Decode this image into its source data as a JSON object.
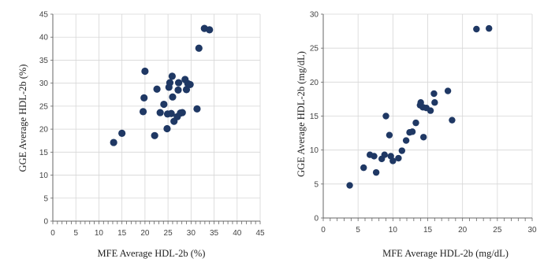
{
  "chart_data": [
    {
      "type": "scatter",
      "xlabel": "MFE Average HDL-2b (%)",
      "ylabel": "GGE Average HDL-2b (%)",
      "xlim": [
        0,
        45
      ],
      "ylim": [
        0,
        45
      ],
      "xticks": [
        0,
        5,
        10,
        15,
        20,
        25,
        30,
        35,
        40,
        45
      ],
      "yticks": [
        0,
        5,
        10,
        15,
        20,
        25,
        30,
        35,
        40,
        45
      ],
      "grid": true,
      "marker_color": "#1f3864",
      "points": [
        {
          "x": 13.2,
          "y": 17.1
        },
        {
          "x": 15.0,
          "y": 19.1
        },
        {
          "x": 19.6,
          "y": 23.8
        },
        {
          "x": 19.8,
          "y": 26.8
        },
        {
          "x": 20.0,
          "y": 32.6
        },
        {
          "x": 22.1,
          "y": 18.6
        },
        {
          "x": 22.6,
          "y": 28.7
        },
        {
          "x": 23.3,
          "y": 23.6
        },
        {
          "x": 24.1,
          "y": 25.4
        },
        {
          "x": 24.8,
          "y": 20.1
        },
        {
          "x": 24.9,
          "y": 23.3
        },
        {
          "x": 25.2,
          "y": 29.1
        },
        {
          "x": 25.4,
          "y": 30.1
        },
        {
          "x": 25.7,
          "y": 23.4
        },
        {
          "x": 25.9,
          "y": 31.5
        },
        {
          "x": 26.0,
          "y": 27.0
        },
        {
          "x": 26.3,
          "y": 21.7
        },
        {
          "x": 27.0,
          "y": 22.7
        },
        {
          "x": 27.2,
          "y": 28.5
        },
        {
          "x": 27.3,
          "y": 30.1
        },
        {
          "x": 27.7,
          "y": 23.5
        },
        {
          "x": 28.1,
          "y": 23.6
        },
        {
          "x": 28.7,
          "y": 30.8
        },
        {
          "x": 29.0,
          "y": 28.6
        },
        {
          "x": 29.3,
          "y": 29.9
        },
        {
          "x": 29.8,
          "y": 29.7
        },
        {
          "x": 31.3,
          "y": 24.4
        },
        {
          "x": 31.7,
          "y": 37.6
        },
        {
          "x": 32.9,
          "y": 41.9
        },
        {
          "x": 34.0,
          "y": 41.6
        }
      ]
    },
    {
      "type": "scatter",
      "xlabel": "MFE Average HDL-2b (mg/dL)",
      "ylabel": "GGE Average HDL-2b (mg/dL)",
      "xlim": [
        0,
        30
      ],
      "ylim": [
        0,
        30
      ],
      "xticks": [
        0,
        5,
        10,
        15,
        20,
        25,
        30
      ],
      "yticks": [
        0,
        5,
        10,
        15,
        20,
        25,
        30
      ],
      "grid": true,
      "marker_color": "#1f3864",
      "points": [
        {
          "x": 3.8,
          "y": 4.8
        },
        {
          "x": 5.8,
          "y": 7.4
        },
        {
          "x": 6.7,
          "y": 9.3
        },
        {
          "x": 7.3,
          "y": 9.1
        },
        {
          "x": 7.6,
          "y": 6.7
        },
        {
          "x": 8.4,
          "y": 8.7
        },
        {
          "x": 8.8,
          "y": 9.3
        },
        {
          "x": 9.0,
          "y": 15.0
        },
        {
          "x": 9.5,
          "y": 12.2
        },
        {
          "x": 9.7,
          "y": 9.1
        },
        {
          "x": 10.0,
          "y": 8.4
        },
        {
          "x": 10.8,
          "y": 8.8
        },
        {
          "x": 11.3,
          "y": 9.9
        },
        {
          "x": 11.9,
          "y": 11.4
        },
        {
          "x": 12.4,
          "y": 12.6
        },
        {
          "x": 12.8,
          "y": 12.7
        },
        {
          "x": 13.3,
          "y": 14.0
        },
        {
          "x": 13.9,
          "y": 16.6
        },
        {
          "x": 14.0,
          "y": 17.0
        },
        {
          "x": 14.3,
          "y": 16.3
        },
        {
          "x": 14.4,
          "y": 11.9
        },
        {
          "x": 14.8,
          "y": 16.2
        },
        {
          "x": 15.4,
          "y": 15.8
        },
        {
          "x": 15.9,
          "y": 18.3
        },
        {
          "x": 16.0,
          "y": 17.0
        },
        {
          "x": 17.9,
          "y": 18.7
        },
        {
          "x": 18.5,
          "y": 14.4
        },
        {
          "x": 22.0,
          "y": 27.8
        },
        {
          "x": 23.8,
          "y": 27.9
        }
      ]
    }
  ]
}
